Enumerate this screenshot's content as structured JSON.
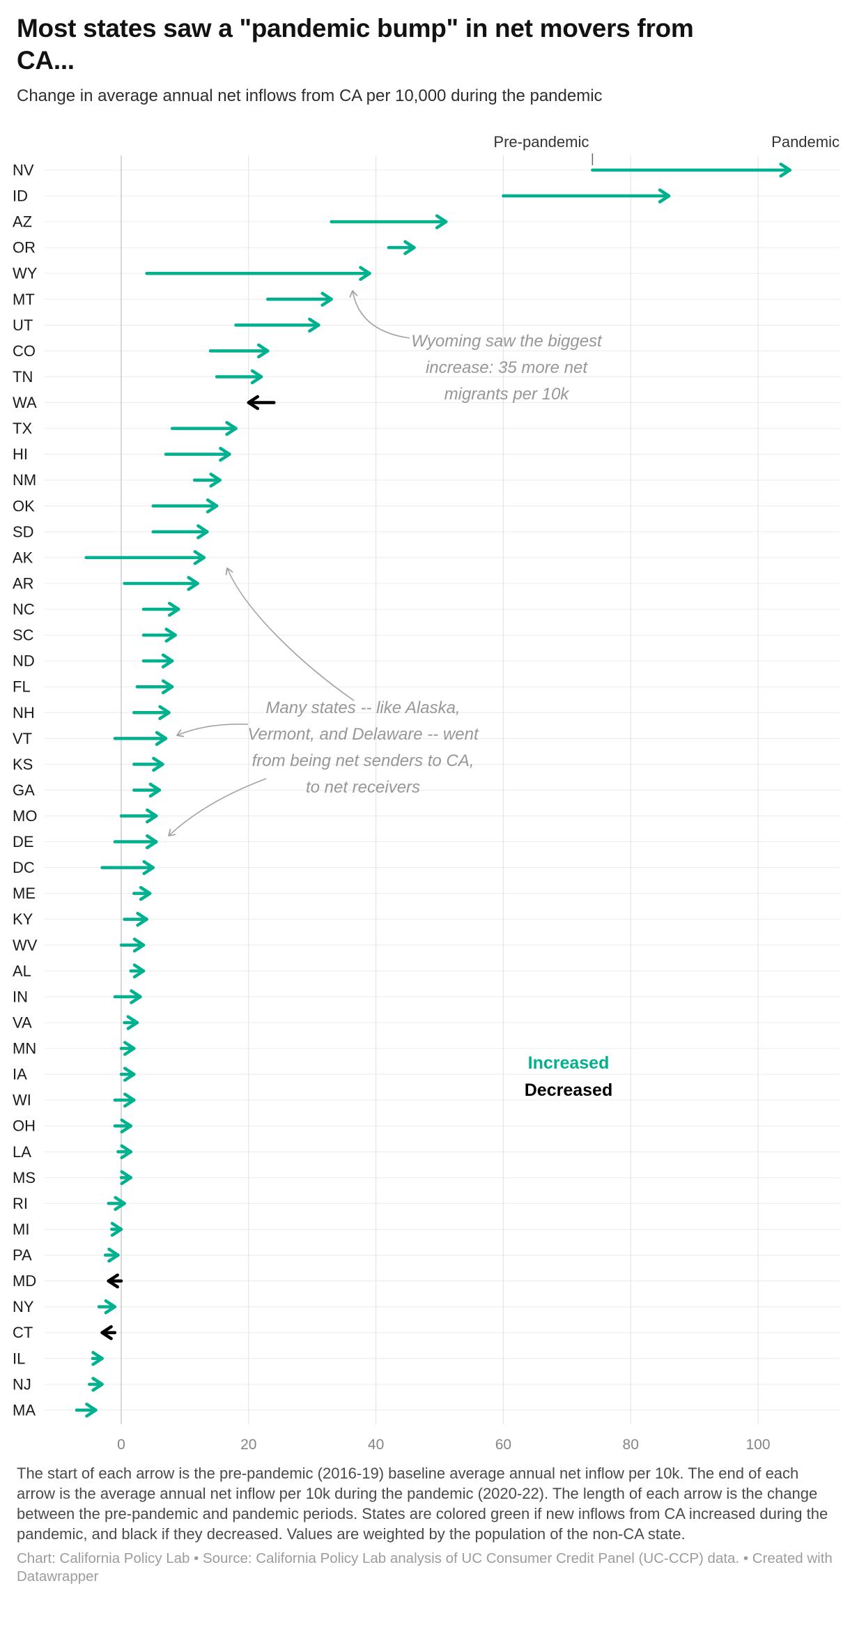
{
  "header": {
    "title": "Most states saw a \"pandemic bump\" in net movers from CA...",
    "subtitle": "Change in average annual net inflows from CA per 10,000 during the pandemic"
  },
  "chart_data": {
    "type": "arrow",
    "orientation": "horizontal",
    "title": "Most states saw a \"pandemic bump\" in net movers from CA...",
    "x_ticks": [
      0,
      20,
      40,
      60,
      80,
      100
    ],
    "x_range": [
      -10,
      114
    ],
    "grid": true,
    "column_labels": {
      "start": "Pre-pandemic",
      "end": "Pandemic"
    },
    "legend": {
      "increased": "Increased",
      "decreased": "Decreased",
      "position": "inside-right"
    },
    "colors": {
      "increased": "#00b190",
      "decreased": "#000000",
      "grid": "#e0e0e0",
      "zero_line": "#b3b3b3",
      "annotation": "#979797"
    },
    "rows": [
      {
        "state": "NV",
        "pre": 74,
        "post": 105,
        "change": "increased"
      },
      {
        "state": "ID",
        "pre": 60,
        "post": 86,
        "change": "increased"
      },
      {
        "state": "AZ",
        "pre": 33,
        "post": 51,
        "change": "increased"
      },
      {
        "state": "OR",
        "pre": 42,
        "post": 46,
        "change": "increased"
      },
      {
        "state": "WY",
        "pre": 4,
        "post": 39,
        "change": "increased"
      },
      {
        "state": "MT",
        "pre": 23,
        "post": 33,
        "change": "increased"
      },
      {
        "state": "UT",
        "pre": 18,
        "post": 31,
        "change": "increased"
      },
      {
        "state": "CO",
        "pre": 14,
        "post": 23,
        "change": "increased"
      },
      {
        "state": "TN",
        "pre": 15,
        "post": 22,
        "change": "increased"
      },
      {
        "state": "WA",
        "pre": 24,
        "post": 20,
        "change": "decreased"
      },
      {
        "state": "TX",
        "pre": 8,
        "post": 18,
        "change": "increased"
      },
      {
        "state": "HI",
        "pre": 7,
        "post": 17,
        "change": "increased"
      },
      {
        "state": "NM",
        "pre": 11.5,
        "post": 15.5,
        "change": "increased"
      },
      {
        "state": "OK",
        "pre": 5,
        "post": 15,
        "change": "increased"
      },
      {
        "state": "SD",
        "pre": 5,
        "post": 13.5,
        "change": "increased"
      },
      {
        "state": "AK",
        "pre": -5.5,
        "post": 13,
        "change": "increased"
      },
      {
        "state": "AR",
        "pre": 0.5,
        "post": 12,
        "change": "increased"
      },
      {
        "state": "NC",
        "pre": 3.5,
        "post": 9,
        "change": "increased"
      },
      {
        "state": "SC",
        "pre": 3.5,
        "post": 8.5,
        "change": "increased"
      },
      {
        "state": "ND",
        "pre": 3.5,
        "post": 8,
        "change": "increased"
      },
      {
        "state": "FL",
        "pre": 2.5,
        "post": 8,
        "change": "increased"
      },
      {
        "state": "NH",
        "pre": 2,
        "post": 7.5,
        "change": "increased"
      },
      {
        "state": "VT",
        "pre": -1,
        "post": 7,
        "change": "increased"
      },
      {
        "state": "KS",
        "pre": 2,
        "post": 6.5,
        "change": "increased"
      },
      {
        "state": "GA",
        "pre": 2,
        "post": 6,
        "change": "increased"
      },
      {
        "state": "MO",
        "pre": 0,
        "post": 5.5,
        "change": "increased"
      },
      {
        "state": "DE",
        "pre": -1,
        "post": 5.5,
        "change": "increased"
      },
      {
        "state": "DC",
        "pre": -3,
        "post": 5,
        "change": "increased"
      },
      {
        "state": "ME",
        "pre": 2,
        "post": 4.5,
        "change": "increased"
      },
      {
        "state": "KY",
        "pre": 0.5,
        "post": 4,
        "change": "increased"
      },
      {
        "state": "WV",
        "pre": 0,
        "post": 3.5,
        "change": "increased"
      },
      {
        "state": "AL",
        "pre": 1.5,
        "post": 3.5,
        "change": "increased"
      },
      {
        "state": "IN",
        "pre": -1,
        "post": 3,
        "change": "increased"
      },
      {
        "state": "VA",
        "pre": 0.5,
        "post": 2.5,
        "change": "increased"
      },
      {
        "state": "MN",
        "pre": 0,
        "post": 2,
        "change": "increased"
      },
      {
        "state": "IA",
        "pre": 0,
        "post": 2,
        "change": "increased"
      },
      {
        "state": "WI",
        "pre": -1,
        "post": 2,
        "change": "increased"
      },
      {
        "state": "OH",
        "pre": -1,
        "post": 1.5,
        "change": "increased"
      },
      {
        "state": "LA",
        "pre": -0.5,
        "post": 1.5,
        "change": "increased"
      },
      {
        "state": "MS",
        "pre": 0,
        "post": 1.5,
        "change": "increased"
      },
      {
        "state": "RI",
        "pre": -2,
        "post": 0.5,
        "change": "increased"
      },
      {
        "state": "MI",
        "pre": -1.5,
        "post": 0,
        "change": "increased"
      },
      {
        "state": "PA",
        "pre": -2.5,
        "post": -0.5,
        "change": "increased"
      },
      {
        "state": "MD",
        "pre": 0,
        "post": -2,
        "change": "decreased"
      },
      {
        "state": "NY",
        "pre": -3.5,
        "post": -1,
        "change": "increased"
      },
      {
        "state": "CT",
        "pre": -1,
        "post": -3,
        "change": "decreased"
      },
      {
        "state": "IL",
        "pre": -4.5,
        "post": -3,
        "change": "increased"
      },
      {
        "state": "NJ",
        "pre": -5,
        "post": -3,
        "change": "increased"
      },
      {
        "state": "MA",
        "pre": -7,
        "post": -4,
        "change": "increased"
      }
    ],
    "annotations": [
      {
        "id": "wyoming",
        "lines": [
          "Wyoming saw the biggest",
          "increase: 35 more net",
          "migrants per 10k"
        ]
      },
      {
        "id": "net-senders",
        "lines": [
          "Many states -- like Alaska,",
          "Vermont, and Delaware -- went",
          "from being net senders to CA,",
          "to net receivers"
        ]
      }
    ]
  },
  "footer": {
    "note": "The start of each arrow is the pre-pandemic (2016-19) baseline average annual net inflow per 10k. The end of each arrow is the average annual net inflow per 10k during the pandemic (2020-22). The length of each arrow is the change between the pre-pandemic and pandemic periods. States are colored green if new inflows from CA increased during the pandemic, and black if they decreased. Values are weighted by the population of the non-CA state.",
    "credit": "Chart: California Policy Lab • Source: California Policy Lab analysis of UC Consumer Credit Panel (UC-CCP) data. • Created with Datawrapper"
  }
}
